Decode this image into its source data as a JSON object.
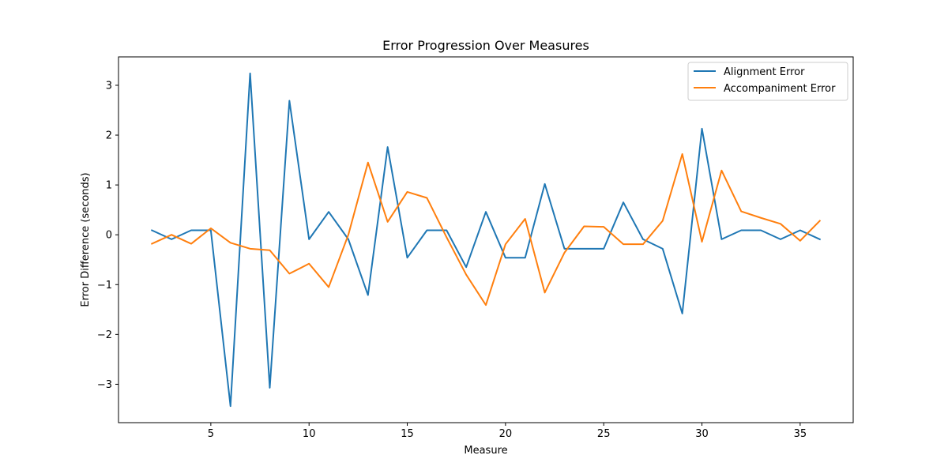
{
  "chart_data": {
    "type": "line",
    "title": "Error Progression Over Measures",
    "xlabel": "Measure",
    "ylabel": "Error Difference (seconds)",
    "xlim": [
      0.3,
      37.7
    ],
    "ylim": [
      -3.77,
      3.57
    ],
    "xticks": [
      5,
      10,
      15,
      20,
      25,
      30,
      35
    ],
    "yticks": [
      -3,
      -2,
      -1,
      0,
      1,
      2,
      3
    ],
    "ytick_labels": [
      "−3",
      "−2",
      "−1",
      "0",
      "1",
      "2",
      "3"
    ],
    "grid": false,
    "legend_position": "top-right",
    "x": [
      2,
      3,
      4,
      5,
      6,
      7,
      8,
      9,
      10,
      11,
      12,
      13,
      14,
      15,
      16,
      17,
      18,
      19,
      20,
      21,
      22,
      23,
      24,
      25,
      26,
      27,
      28,
      29,
      30,
      31,
      32,
      33,
      34,
      35,
      36
    ],
    "series": [
      {
        "name": "Alignment Error",
        "color": "#1f77b4",
        "values": [
          0.09,
          -0.09,
          0.09,
          0.09,
          -3.44,
          3.24,
          -3.07,
          2.69,
          -0.09,
          0.46,
          -0.09,
          -1.21,
          1.76,
          -0.46,
          0.09,
          0.09,
          -0.65,
          0.46,
          -0.46,
          -0.46,
          1.02,
          -0.28,
          -0.28,
          -0.28,
          0.65,
          -0.09,
          -0.28,
          -1.58,
          2.13,
          -0.09,
          0.09,
          0.09,
          -0.09,
          0.09,
          -0.09
        ]
      },
      {
        "name": "Accompaniment Error",
        "color": "#ff7f0e",
        "values": [
          -0.18,
          0.0,
          -0.18,
          0.13,
          -0.16,
          -0.28,
          -0.31,
          -0.78,
          -0.58,
          -1.05,
          0.0,
          1.45,
          0.26,
          0.86,
          0.74,
          -0.05,
          -0.8,
          -1.41,
          -0.19,
          0.32,
          -1.16,
          -0.36,
          0.17,
          0.16,
          -0.19,
          -0.19,
          0.28,
          1.62,
          -0.14,
          1.29,
          0.47,
          0.34,
          0.22,
          -0.12,
          0.28
        ]
      }
    ]
  }
}
